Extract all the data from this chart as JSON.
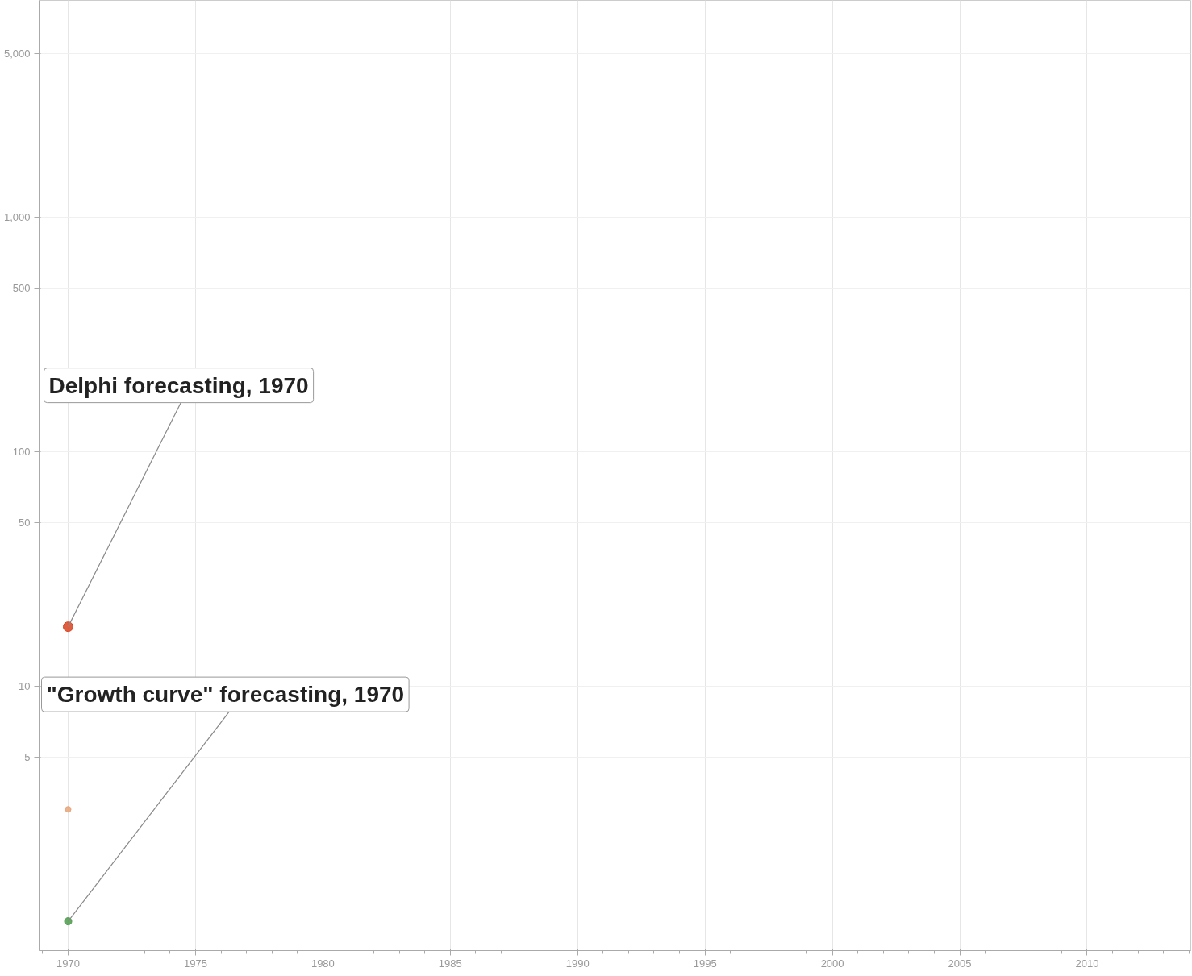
{
  "chart_data": {
    "type": "scatter",
    "log": "y",
    "grid": true,
    "marker": "circle",
    "xlim": [
      1968.86,
      2014.07
    ],
    "ylim": [
      0.75,
      8400
    ],
    "xticks": [
      1970,
      1975,
      1980,
      1985,
      1990,
      1995,
      2000,
      2005,
      2010
    ],
    "yticks": [
      5,
      10,
      50,
      100,
      500,
      {
        "value": 1000,
        "label": "1,000"
      },
      {
        "value": 5000,
        "label": "5,000"
      }
    ],
    "x": [
      1970
    ],
    "series": [
      {
        "color": "#d9411e",
        "values": [
          18
        ]
      },
      {
        "color": "#e8a57a",
        "values": [
          3
        ]
      },
      {
        "color": "#4a9a4a",
        "values": [
          1
        ]
      }
    ],
    "annotations": [
      {
        "text": "Delphi forecasting, 1970",
        "x": 1970,
        "y": 18
      },
      {
        "text": "\"Growth curve\" forecasting, 1970",
        "x": 1970,
        "y": 1
      }
    ]
  }
}
